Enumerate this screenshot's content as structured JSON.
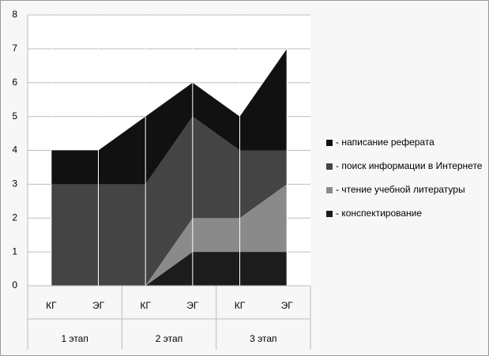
{
  "chart_data": {
    "type": "stacked_area",
    "categories": [
      "КГ",
      "ЭГ",
      "КГ",
      "ЭГ",
      "КГ",
      "ЭГ"
    ],
    "groups": [
      "1 этап",
      "2 этап",
      "3 этап"
    ],
    "series": [
      {
        "name": "- написание реферата",
        "color": "#111111",
        "values": [
          1,
          1,
          2,
          1,
          1,
          3
        ]
      },
      {
        "name": "- поиск информации в Интернете",
        "color": "#444444",
        "values": [
          3,
          3,
          3,
          3,
          2,
          1
        ]
      },
      {
        "name": "- чтение учебной литературы",
        "color": "#8a8a8a",
        "values": [
          0,
          0,
          0,
          1,
          1,
          2
        ]
      },
      {
        "name": "- конспектирование",
        "color": "#1c1c1c",
        "values": [
          0,
          0,
          0,
          1,
          1,
          1
        ]
      }
    ],
    "ylim": [
      0,
      8
    ],
    "yticks": [
      0,
      1,
      2,
      3,
      4,
      5,
      6,
      7,
      8
    ],
    "grid": true
  }
}
